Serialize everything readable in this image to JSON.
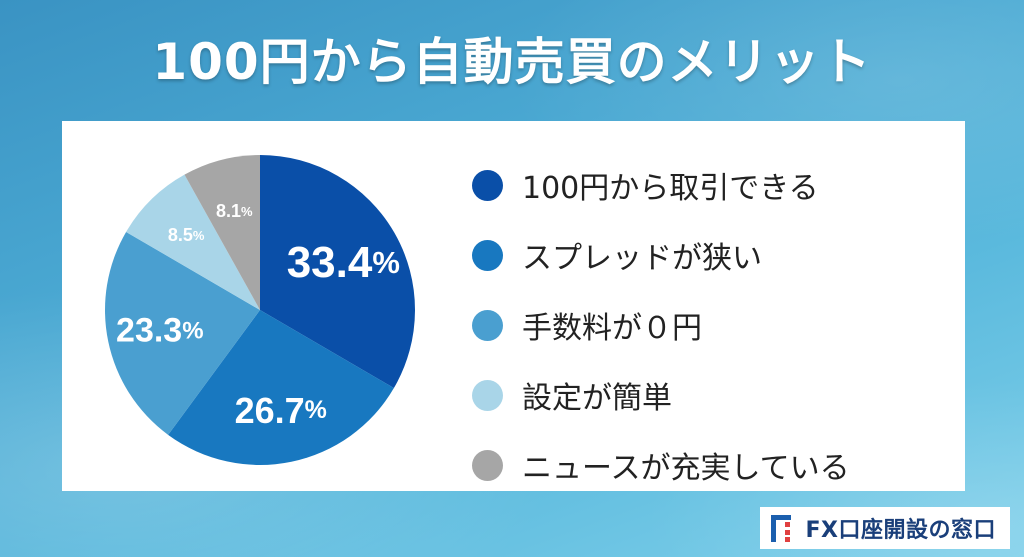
{
  "title": "100円から自動売買のメリット",
  "chart_data": {
    "type": "pie",
    "slices": [
      {
        "label": "100円から取引できる",
        "value": 33.4,
        "display": "33.4",
        "color": "#0a4fa8"
      },
      {
        "label": "スプレッドが狭い",
        "value": 26.7,
        "display": "26.7",
        "color": "#1878c0"
      },
      {
        "label": "手数料が０円",
        "value": 23.3,
        "display": "23.3",
        "color": "#4a9fd0"
      },
      {
        "label": "設定が簡単",
        "value": 8.5,
        "display": "8.5",
        "color": "#a9d5e8"
      },
      {
        "label": "ニュースが充実している",
        "value": 8.1,
        "display": "8.1",
        "color": "#a6a6a6"
      }
    ],
    "unit": "%",
    "legend_position": "right"
  },
  "brand": {
    "name": "FX口座開設の窓口"
  }
}
